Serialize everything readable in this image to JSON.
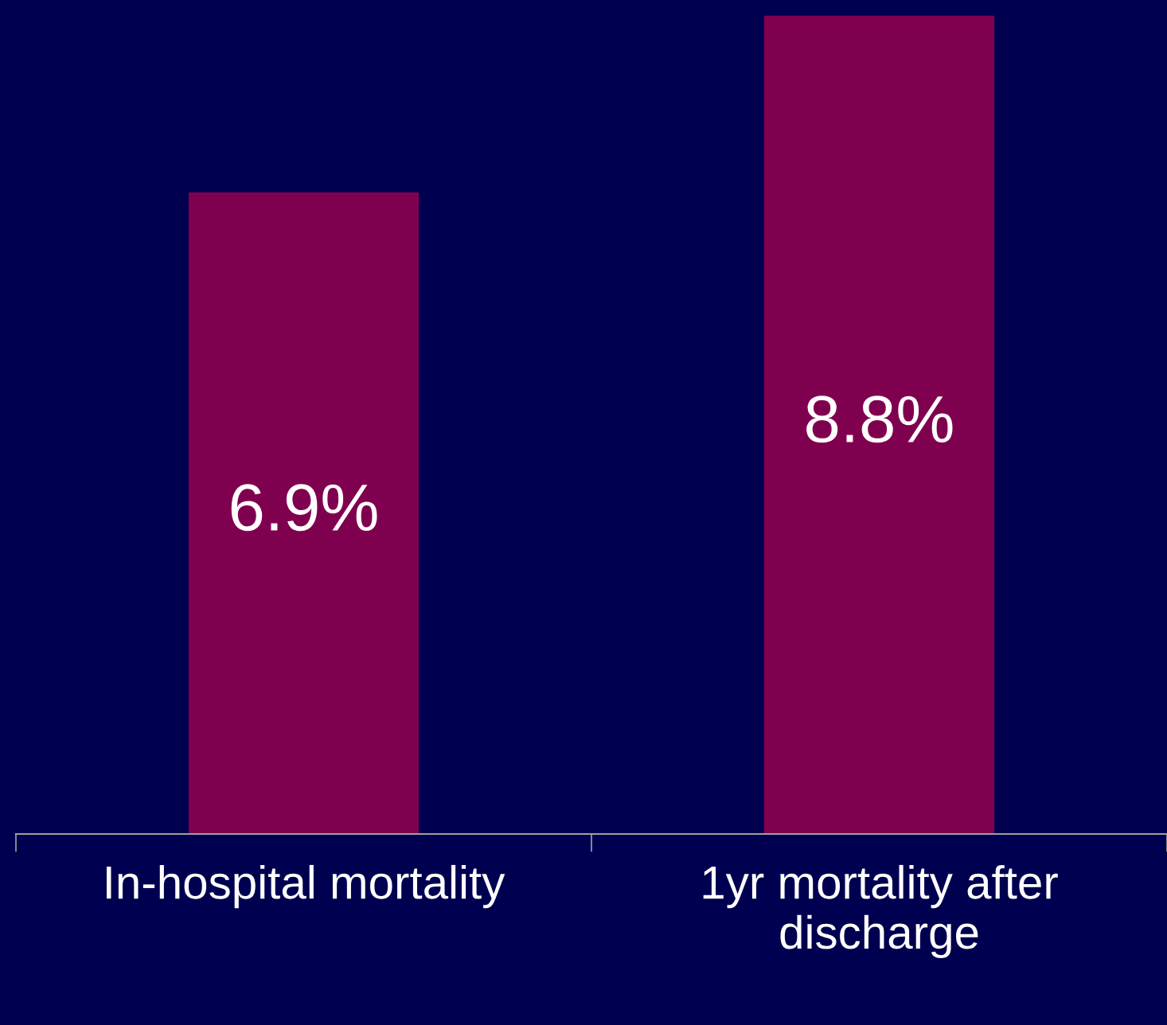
{
  "chart_data": {
    "type": "bar",
    "categories": [
      "In-hospital mortality",
      "1yr mortality after\ndischarge"
    ],
    "values": [
      6.9,
      8.8
    ],
    "value_labels": [
      "6.9%",
      "8.8%"
    ],
    "color": "#800050",
    "ylim": [
      0,
      8.97
    ],
    "grid": false,
    "legend": false,
    "tick_labels": "x"
  }
}
